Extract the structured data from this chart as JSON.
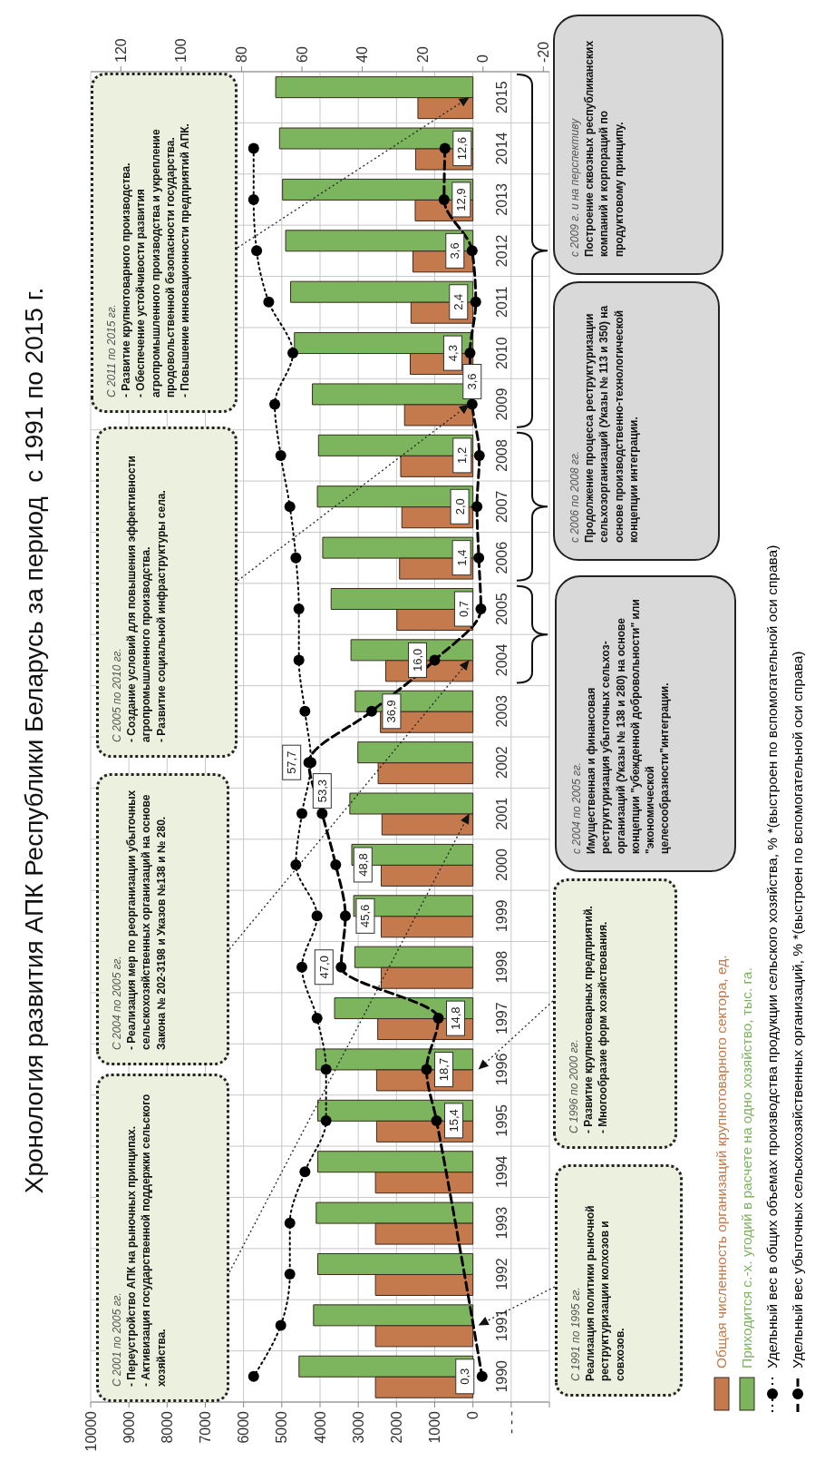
{
  "chart_data": {
    "type": "bar",
    "orientation": "horizontal",
    "title": "Хронология развития АПК Республики Беларусь за период  с 1991 по 2015 г.",
    "categories": [
      "2015",
      "2014",
      "2013",
      "2012",
      "2011",
      "2010",
      "2009",
      "2008",
      "2007",
      "2006",
      "2005",
      "2004",
      "2003",
      "2002",
      "2001",
      "2000",
      "1999",
      "1998",
      "1997",
      "1996",
      "1995",
      "1994",
      "1993",
      "1992",
      "1991",
      "1990"
    ],
    "series": [
      {
        "name": "Общая численность организаций крупнотоварного сектора, ед.",
        "color": "#c47a4c",
        "values": [
          1440,
          1500,
          1510,
          1570,
          1620,
          1640,
          1790,
          1890,
          1860,
          1920,
          1990,
          2280,
          2420,
          2480,
          2380,
          2400,
          2400,
          2400,
          2490,
          2520,
          2520,
          2550,
          2550,
          2550,
          2550,
          2550
        ]
      },
      {
        "name": "Приходится с.-х. угодий в расчете на одно хозяйство, тыс. га.",
        "color": "#7db55e",
        "values": [
          5160,
          5060,
          4980,
          4900,
          4770,
          4670,
          4200,
          4040,
          4070,
          3930,
          3710,
          3190,
          3080,
          3010,
          3220,
          3170,
          3120,
          3090,
          3620,
          4110,
          4060,
          4060,
          4100,
          4060,
          4170,
          4550
        ]
      },
      {
        "name": "Удельный вес в общих объемах производства продукции сельского хозяйства, % *(выстроен по вспомогательной оси справа)",
        "type": "line",
        "axis": "x2",
        "line_style": "dotted",
        "color": "#000000",
        "values": [
          null,
          76,
          76,
          75,
          71,
          63,
          69,
          67,
          64,
          62,
          61,
          61,
          59,
          57,
          60,
          62,
          55,
          60,
          55,
          52,
          52,
          59,
          64,
          64,
          67,
          76
        ]
      },
      {
        "name": "Удельный вес убыточных сельскохозяйственных организаций, % *(выстроен по вспомогательной оси справа)",
        "type": "line",
        "axis": "x2",
        "line_style": "dashed",
        "color": "#000000",
        "values": [
          null,
          12.6,
          12.9,
          3.6,
          2.4,
          4.3,
          3.6,
          1.2,
          2.0,
          1.4,
          0.7,
          16.0,
          36.9,
          57.7,
          53.3,
          48.8,
          45.6,
          47.0,
          14.8,
          18.7,
          15.4,
          null,
          null,
          null,
          null,
          0.3
        ],
        "value_labels": [
          null,
          "12,6",
          "12,9",
          "3,6",
          "2,4",
          "4,3",
          "3,6",
          "1,2",
          "2,0",
          "1,4",
          "0,7",
          "16,0",
          "36,9",
          "57,7",
          "53,3",
          "48,8",
          "45,6",
          "47,0",
          "14,8",
          "18,7",
          "15,4",
          null,
          null,
          null,
          null,
          "0,3"
        ]
      }
    ],
    "xlim": [
      10000,
      -2000
    ],
    "xticks": [
      {
        "value": -2000,
        "label": null
      },
      {
        "value": -1000,
        "label": "- - -"
      },
      0,
      1000,
      2000,
      3000,
      4000,
      5000,
      6000,
      7000,
      8000,
      9000,
      10000
    ],
    "x2lim": [
      130,
      -22
    ],
    "x2ticks": [
      -20,
      0,
      20,
      40,
      60,
      80,
      100,
      120
    ],
    "grid": true,
    "legend": "right",
    "marker": "circle",
    "annotations": [
      "С 2001 по 2005 гг.\n- Переустройство АПК на рыночных принципах.\n- Активизация государственной поддержки сельского хозяйства.",
      "С 2004 по 2005 гг.\n- Реализация мер по реорганизации убыточных сельскохозяйственных организаций на основе Закона № 202-3198 и Указов №138 и № 280.",
      "С 2005 по 2010 гг.\n- Создание условий для повышения эффективности агропромышленного производства.\n- Развитие социальной инфраструктуры села.",
      "С 2011 по 2015 гг.\n- Развитие крупнотоварного производства.\n- Обеспечение устойчивости развития агропромышленного производства и укрепление продовольственной безопасности государства.\n- Повышение инновационности предприятий АПК.",
      "С 1991 по 1995 гг.\nРеализация политики рыночной реструктуризации колхозов и совхозов.",
      "С 1996 по 2000 гг.\n- Развитие крупнотоварных предприятий.\n- Многообразие форм хозяйствования.",
      "с 2004 по 2005 гг.\nИмущественная и финансовая реструктуризация убыточных сельхоз-организаций (Указы № 138 и 280) на основе концепции \"убежденной добровольности\" или \"экономической целесообразности\"интеграции.",
      "с 2006 по 2008 гг.\nПродолжение процесса реструктуризации сельхозорганизаций (Указы № 113 и 350) на основе производственно-технологической концепции интеграции.",
      "с 2009 г. и на перспективу\nПостроение сквозных республиканских компаний и корпораций по продуктовому принципу."
    ]
  }
}
